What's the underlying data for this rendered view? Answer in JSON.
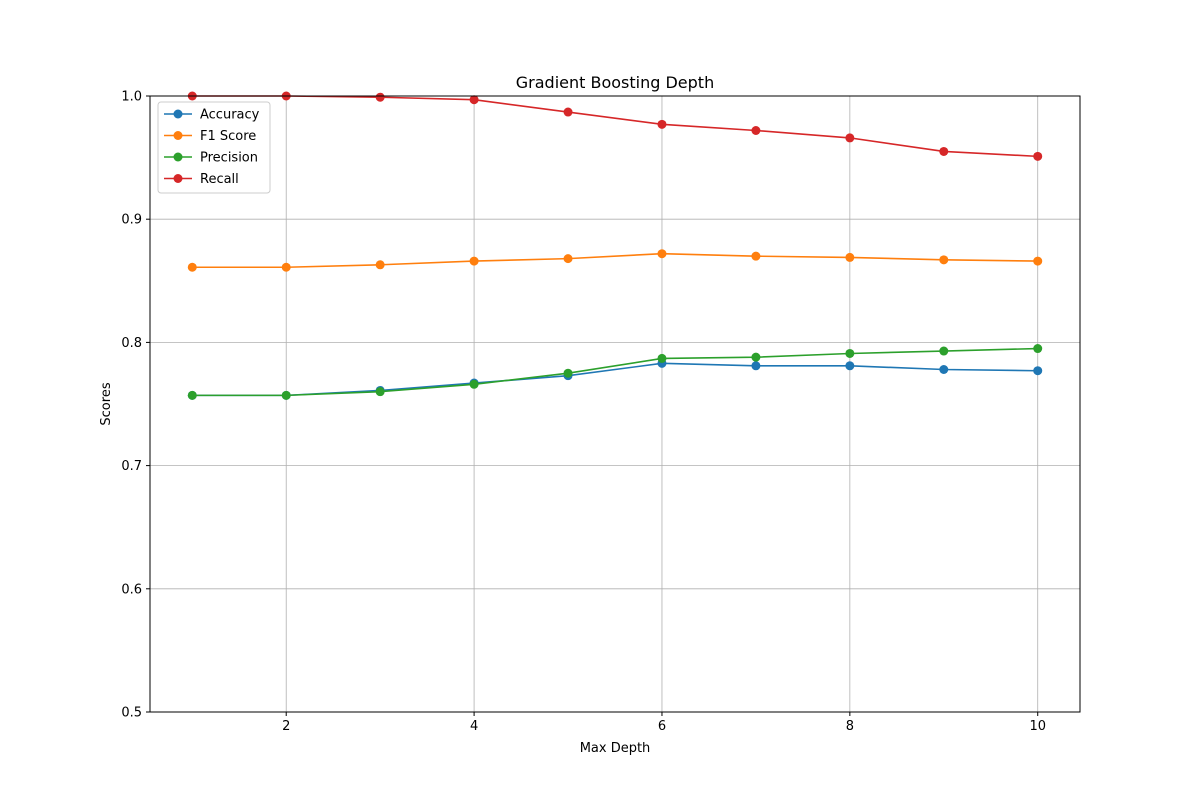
{
  "chart_data": {
    "type": "line",
    "title": "Gradient Boosting Depth",
    "xlabel": "Max Depth",
    "ylabel": "Scores",
    "x": [
      1,
      2,
      3,
      4,
      5,
      6,
      7,
      8,
      9,
      10
    ],
    "xlim": [
      0.55,
      10.45
    ],
    "ylim": [
      0.5,
      1.0
    ],
    "xticks": [
      2,
      4,
      6,
      8,
      10
    ],
    "yticks": [
      0.5,
      0.6,
      0.7,
      0.8,
      0.9,
      1.0
    ],
    "xtick_labels": [
      "2",
      "4",
      "6",
      "8",
      "10"
    ],
    "ytick_labels": [
      "0.5",
      "0.6",
      "0.7",
      "0.8",
      "0.9",
      "1.0"
    ],
    "grid": true,
    "legend_position": "top-left",
    "series": [
      {
        "name": "Accuracy",
        "color": "#1f77b4",
        "values": [
          0.757,
          0.757,
          0.761,
          0.767,
          0.773,
          0.783,
          0.781,
          0.781,
          0.778,
          0.777
        ]
      },
      {
        "name": "F1 Score",
        "color": "#ff7f0e",
        "values": [
          0.861,
          0.861,
          0.863,
          0.866,
          0.868,
          0.872,
          0.87,
          0.869,
          0.867,
          0.866
        ]
      },
      {
        "name": "Precision",
        "color": "#2ca02c",
        "values": [
          0.757,
          0.757,
          0.76,
          0.766,
          0.775,
          0.787,
          0.788,
          0.791,
          0.793,
          0.795
        ]
      },
      {
        "name": "Recall",
        "color": "#d62728",
        "values": [
          1.0,
          1.0,
          0.999,
          0.997,
          0.987,
          0.977,
          0.972,
          0.966,
          0.955,
          0.951
        ]
      }
    ]
  }
}
